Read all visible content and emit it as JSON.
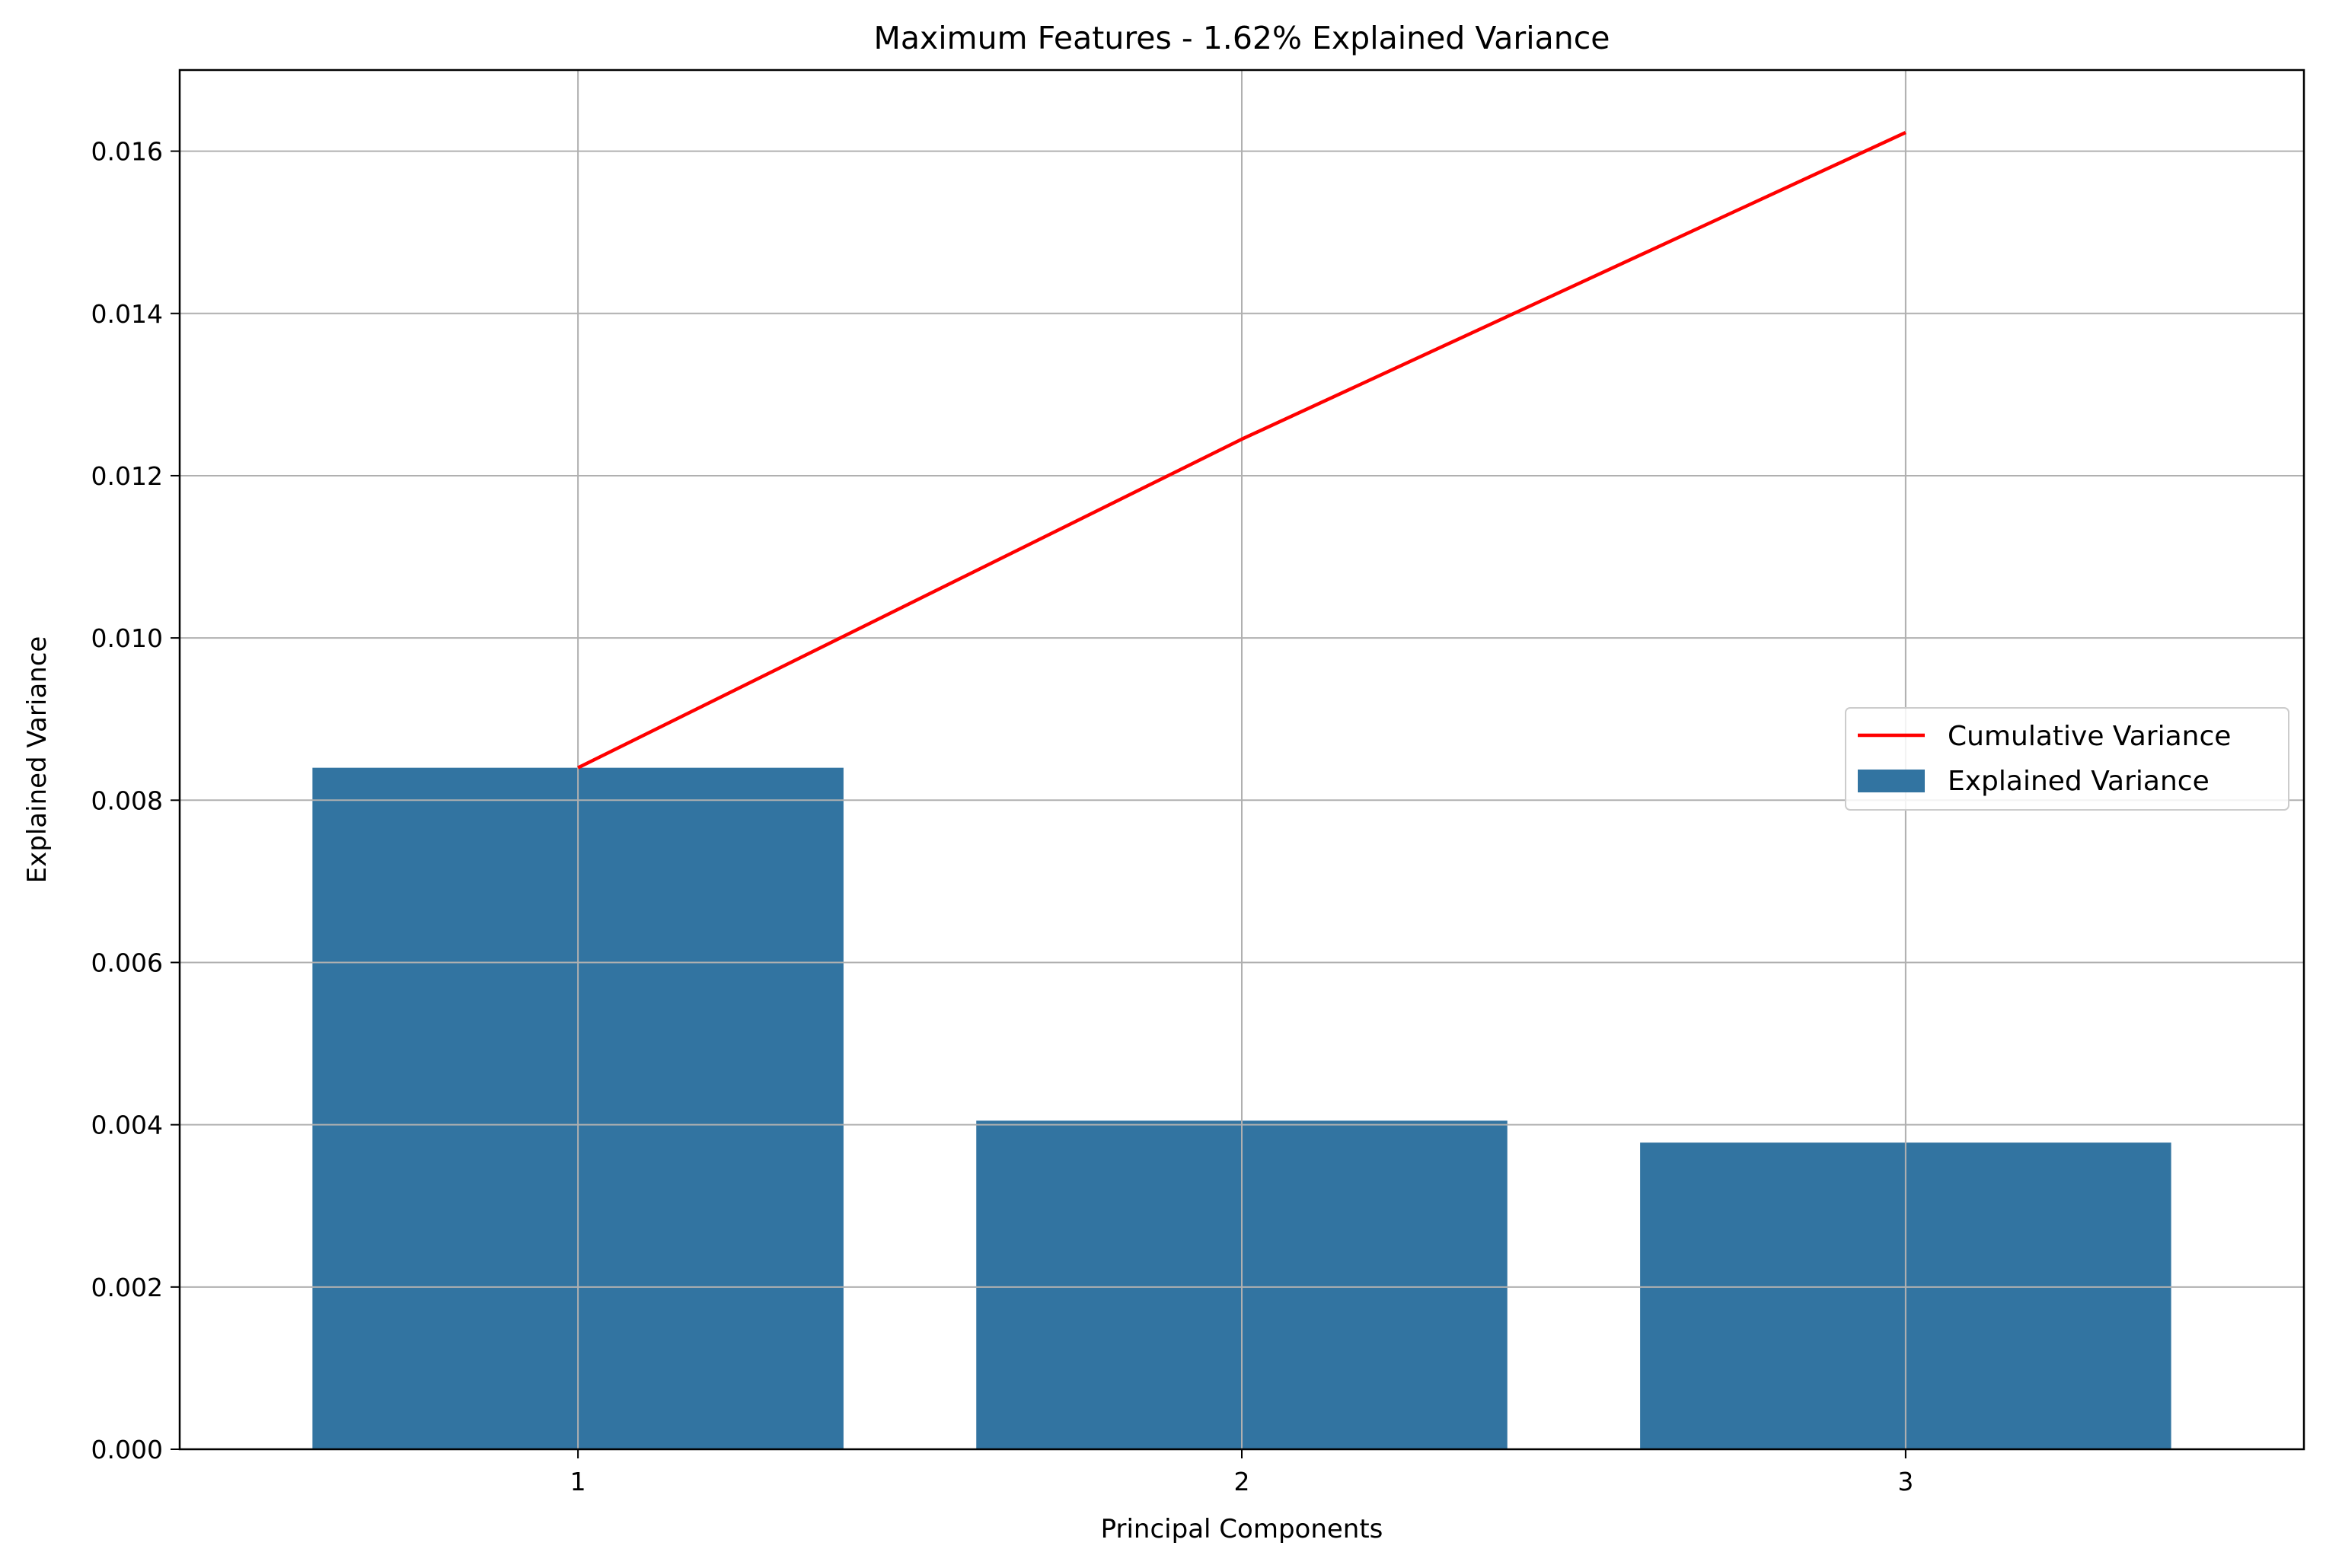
{
  "chart_data": {
    "type": "bar",
    "title": "Maximum Features - 1.62% Explained Variance",
    "xlabel": "Principal Components",
    "ylabel": "Explained Variance",
    "categories": [
      "1",
      "2",
      "3"
    ],
    "ylim": [
      0,
      0.017
    ],
    "yticks": [
      "0.000",
      "0.002",
      "0.004",
      "0.006",
      "0.008",
      "0.010",
      "0.012",
      "0.014",
      "0.016"
    ],
    "grid": true,
    "legend_position": "center-right",
    "series": [
      {
        "name": "Explained Variance",
        "type": "bar",
        "color": "#3274a1",
        "values": [
          0.0084,
          0.00405,
          0.00378
        ]
      },
      {
        "name": "Cumulative Variance",
        "type": "line",
        "color": "#ff0000",
        "values": [
          0.0084,
          0.01245,
          0.01623
        ]
      }
    ]
  }
}
